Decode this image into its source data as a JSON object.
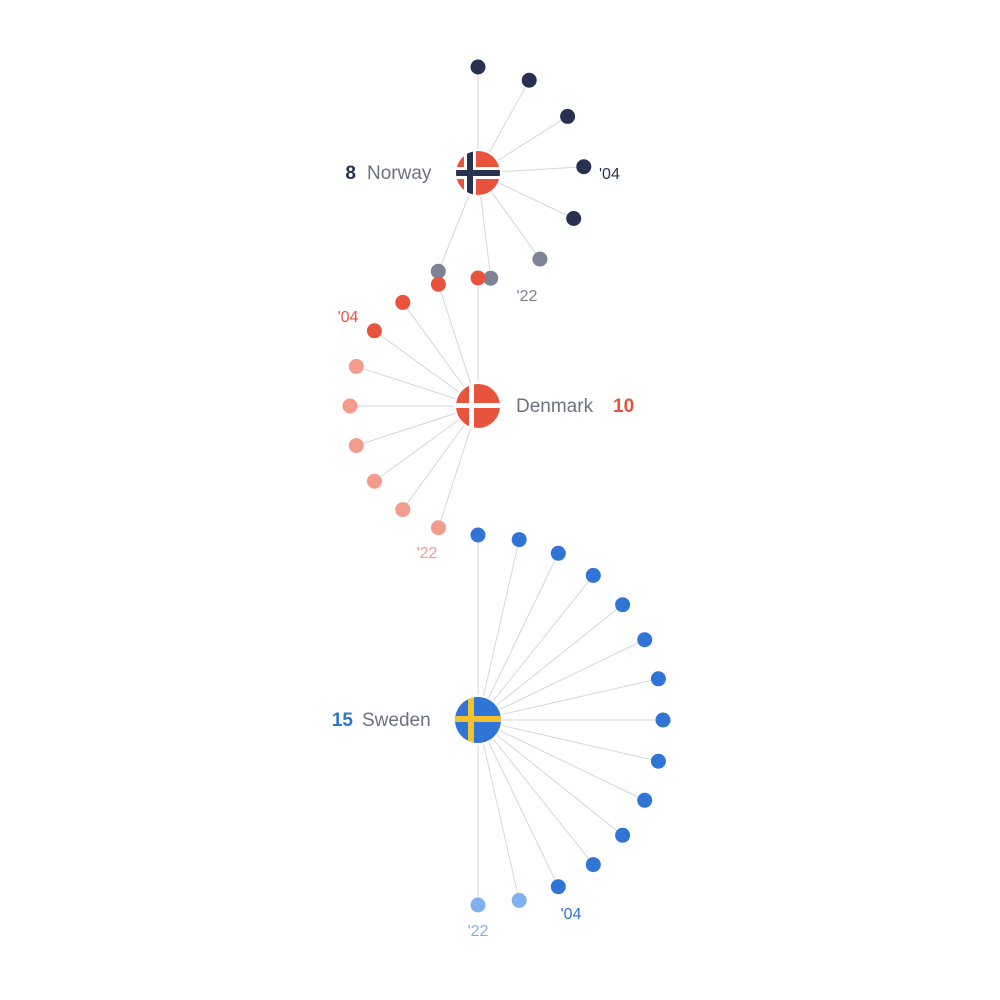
{
  "chart_data": {
    "type": "radial-dot",
    "countries": [
      {
        "name": "Norway",
        "count": "8",
        "flag": "norway-flag",
        "color": "#283250",
        "light_color": "#7d8294",
        "dark_dots": 5,
        "total_dots": 8,
        "label_side": "left",
        "fan_direction": "right",
        "year_labels": [
          "'04",
          "'22"
        ]
      },
      {
        "name": "Denmark",
        "count": "10",
        "flag": "denmark-flag",
        "color": "#e8533e",
        "light_color": "#f39b8d",
        "dark_dots": 4,
        "total_dots": 10,
        "label_side": "right",
        "fan_direction": "left",
        "year_labels": [
          "'04",
          "'22"
        ]
      },
      {
        "name": "Sweden",
        "count": "15",
        "flag": "sweden-flag",
        "color": "#3075d6",
        "light_color": "#7fb1ee",
        "dark_dots": 13,
        "total_dots": 15,
        "label_side": "left",
        "fan_direction": "right",
        "year_labels": [
          "'04",
          "'22"
        ]
      }
    ],
    "colors": {
      "norway_flag_red": "#e8533e",
      "norway_flag_blue": "#283250",
      "denmark_flag_red": "#e8533e",
      "sweden_flag_blue": "#3075d6",
      "sweden_flag_yellow": "#f2c12e",
      "spoke": "#d4d6da",
      "name_text": "#6b7280"
    }
  }
}
